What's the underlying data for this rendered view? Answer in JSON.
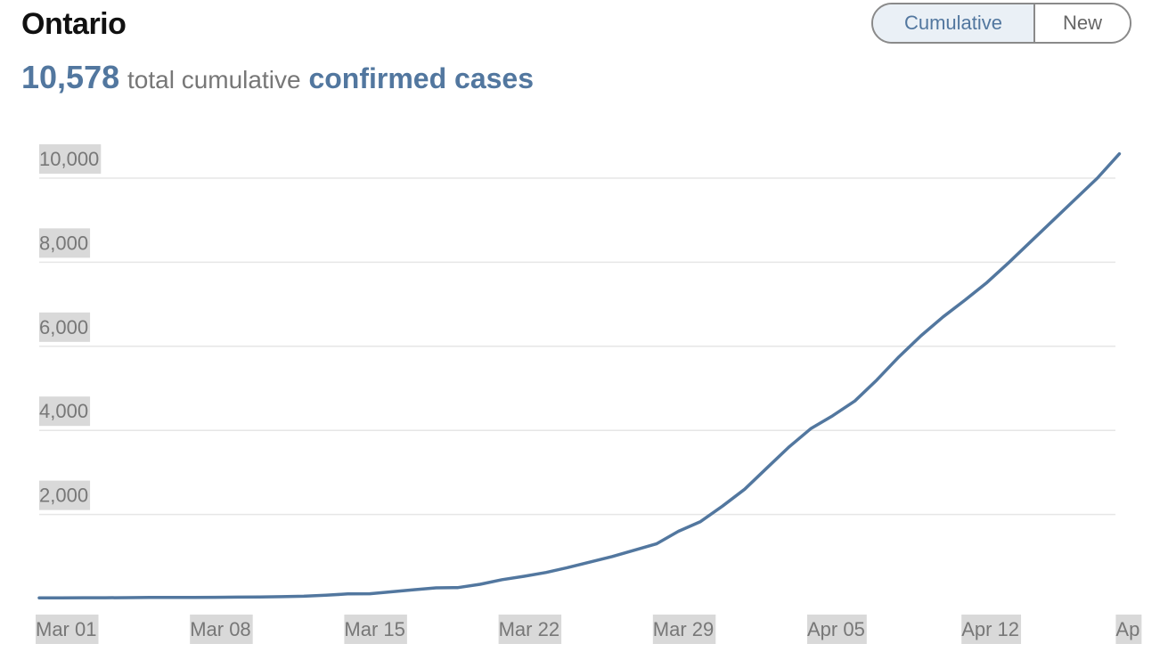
{
  "header": {
    "title": "Ontario",
    "total_value": "10,578",
    "total_text": "total cumulative",
    "total_emphasis": "confirmed cases"
  },
  "toggle": {
    "options": [
      "Cumulative",
      "New"
    ],
    "selected": "Cumulative"
  },
  "colors": {
    "line": "#52779f",
    "accent": "#52779f",
    "grid": "#e6e6e6",
    "label_bg": "#d9d9d9"
  },
  "chart_data": {
    "type": "line",
    "title": "",
    "xlabel": "",
    "ylabel": "",
    "grid": true,
    "ylim": [
      0,
      10000
    ],
    "y_ticks": [
      "10,000",
      "8,000",
      "6,000",
      "4,000",
      "2,000"
    ],
    "y_tick_values": [
      10000,
      8000,
      6000,
      4000,
      2000
    ],
    "x_ticks": [
      "Mar 01",
      "Mar 08",
      "Mar 15",
      "Mar 22",
      "Mar 29",
      "Apr 05",
      "Apr 12",
      "Ap"
    ],
    "x_tick_dates": [
      "2020-03-01",
      "2020-03-08",
      "2020-03-15",
      "2020-03-22",
      "2020-03-29",
      "2020-04-05",
      "2020-04-12",
      "2020-04-19"
    ],
    "series": [
      {
        "x": [
          "2020-03-01",
          "2020-03-02",
          "2020-03-03",
          "2020-03-04",
          "2020-03-05",
          "2020-03-06",
          "2020-03-07",
          "2020-03-08",
          "2020-03-09",
          "2020-03-10",
          "2020-03-11",
          "2020-03-12",
          "2020-03-13",
          "2020-03-14",
          "2020-03-15",
          "2020-03-16",
          "2020-03-17",
          "2020-03-18",
          "2020-03-19",
          "2020-03-20",
          "2020-03-21",
          "2020-03-22",
          "2020-03-23",
          "2020-03-24",
          "2020-03-25",
          "2020-03-26",
          "2020-03-27",
          "2020-03-28",
          "2020-03-29",
          "2020-03-30",
          "2020-03-31",
          "2020-04-01",
          "2020-04-02",
          "2020-04-03",
          "2020-04-04",
          "2020-04-05",
          "2020-04-06",
          "2020-04-07",
          "2020-04-08",
          "2020-04-09",
          "2020-04-10",
          "2020-04-11",
          "2020-04-12",
          "2020-04-13",
          "2020-04-14",
          "2020-04-15",
          "2020-04-16",
          "2020-04-17",
          "2020-04-18",
          "2020-04-19"
        ],
        "values": [
          15,
          18,
          20,
          20,
          22,
          26,
          28,
          28,
          30,
          33,
          36,
          45,
          56,
          79,
          110,
          115,
          160,
          210,
          255,
          260,
          340,
          450,
          530,
          620,
          740,
          870,
          1000,
          1150,
          1300,
          1600,
          1830,
          2200,
          2600,
          3100,
          3600,
          4040,
          4350,
          4700,
          5200,
          5750,
          6250,
          6700,
          7100,
          7520,
          8000,
          8500,
          9000,
          9500,
          10000,
          10578
        ]
      }
    ]
  }
}
